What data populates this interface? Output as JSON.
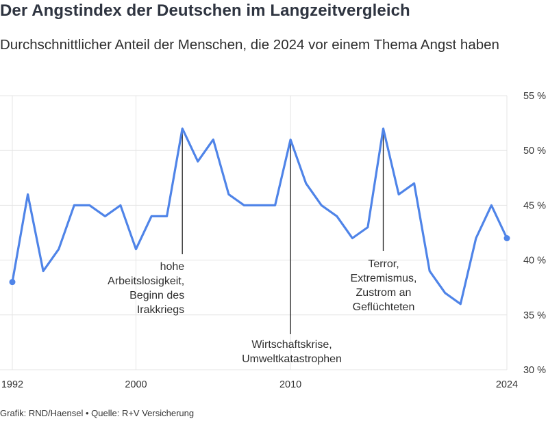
{
  "title": "Der Angstindex der Deutschen im Langzeitvergleich",
  "subtitle": "Durchschnittlicher Anteil der Menschen, die 2024 vor einem Thema Angst haben",
  "footer": "Grafik: RND/Haensel • Quelle: R+V Versicherung",
  "colors": {
    "line": "#4f84e8",
    "grid": "#e4e4e4",
    "annotation": "#222222"
  },
  "chart_data": {
    "type": "line",
    "title": "Der Angstindex der Deutschen im Langzeitvergleich",
    "subtitle": "Durchschnittlicher Anteil der Menschen, die 2024 vor einem Thema Angst haben",
    "xlabel": "",
    "ylabel": "",
    "xlim": [
      1992,
      2024
    ],
    "ylim": [
      30,
      55
    ],
    "x_ticks": [
      1992,
      2000,
      2010,
      2024
    ],
    "y_ticks": [
      30,
      35,
      40,
      45,
      50,
      55
    ],
    "y_tick_labels": [
      "30 %",
      "35 %",
      "40 %",
      "45 %",
      "50 %",
      "55 %"
    ],
    "y_axis_position": "right",
    "grid": true,
    "series": [
      {
        "x": [
          1992,
          1993,
          1994,
          1995,
          1996,
          1997,
          1998,
          1999,
          2000,
          2001,
          2002,
          2003,
          2004,
          2005,
          2006,
          2007,
          2008,
          2009,
          2010,
          2011,
          2012,
          2013,
          2014,
          2015,
          2016,
          2017,
          2018,
          2019,
          2020,
          2021,
          2022,
          2023,
          2024
        ],
        "values": [
          38,
          46,
          39,
          41,
          45,
          45,
          44,
          45,
          41,
          44,
          44,
          52,
          49,
          51,
          46,
          45,
          45,
          45,
          51,
          47,
          45,
          44,
          42,
          43,
          52,
          46,
          47,
          39,
          37,
          36,
          42,
          45,
          42
        ]
      }
    ],
    "annotations": [
      {
        "x": 2003,
        "y": 52,
        "lines": [
          "hohe",
          "Arbeitslosigkeit,",
          "Beginn des",
          "Irakkriegs"
        ]
      },
      {
        "x": 2010,
        "y": 51,
        "lines": [
          "Wirtschaftskrise,",
          "Umweltkatastrophen"
        ]
      },
      {
        "x": 2016,
        "y": 52,
        "lines": [
          "Terror,",
          "Extremismus,",
          "Zustrom an",
          "Geflüchteten"
        ]
      }
    ]
  }
}
